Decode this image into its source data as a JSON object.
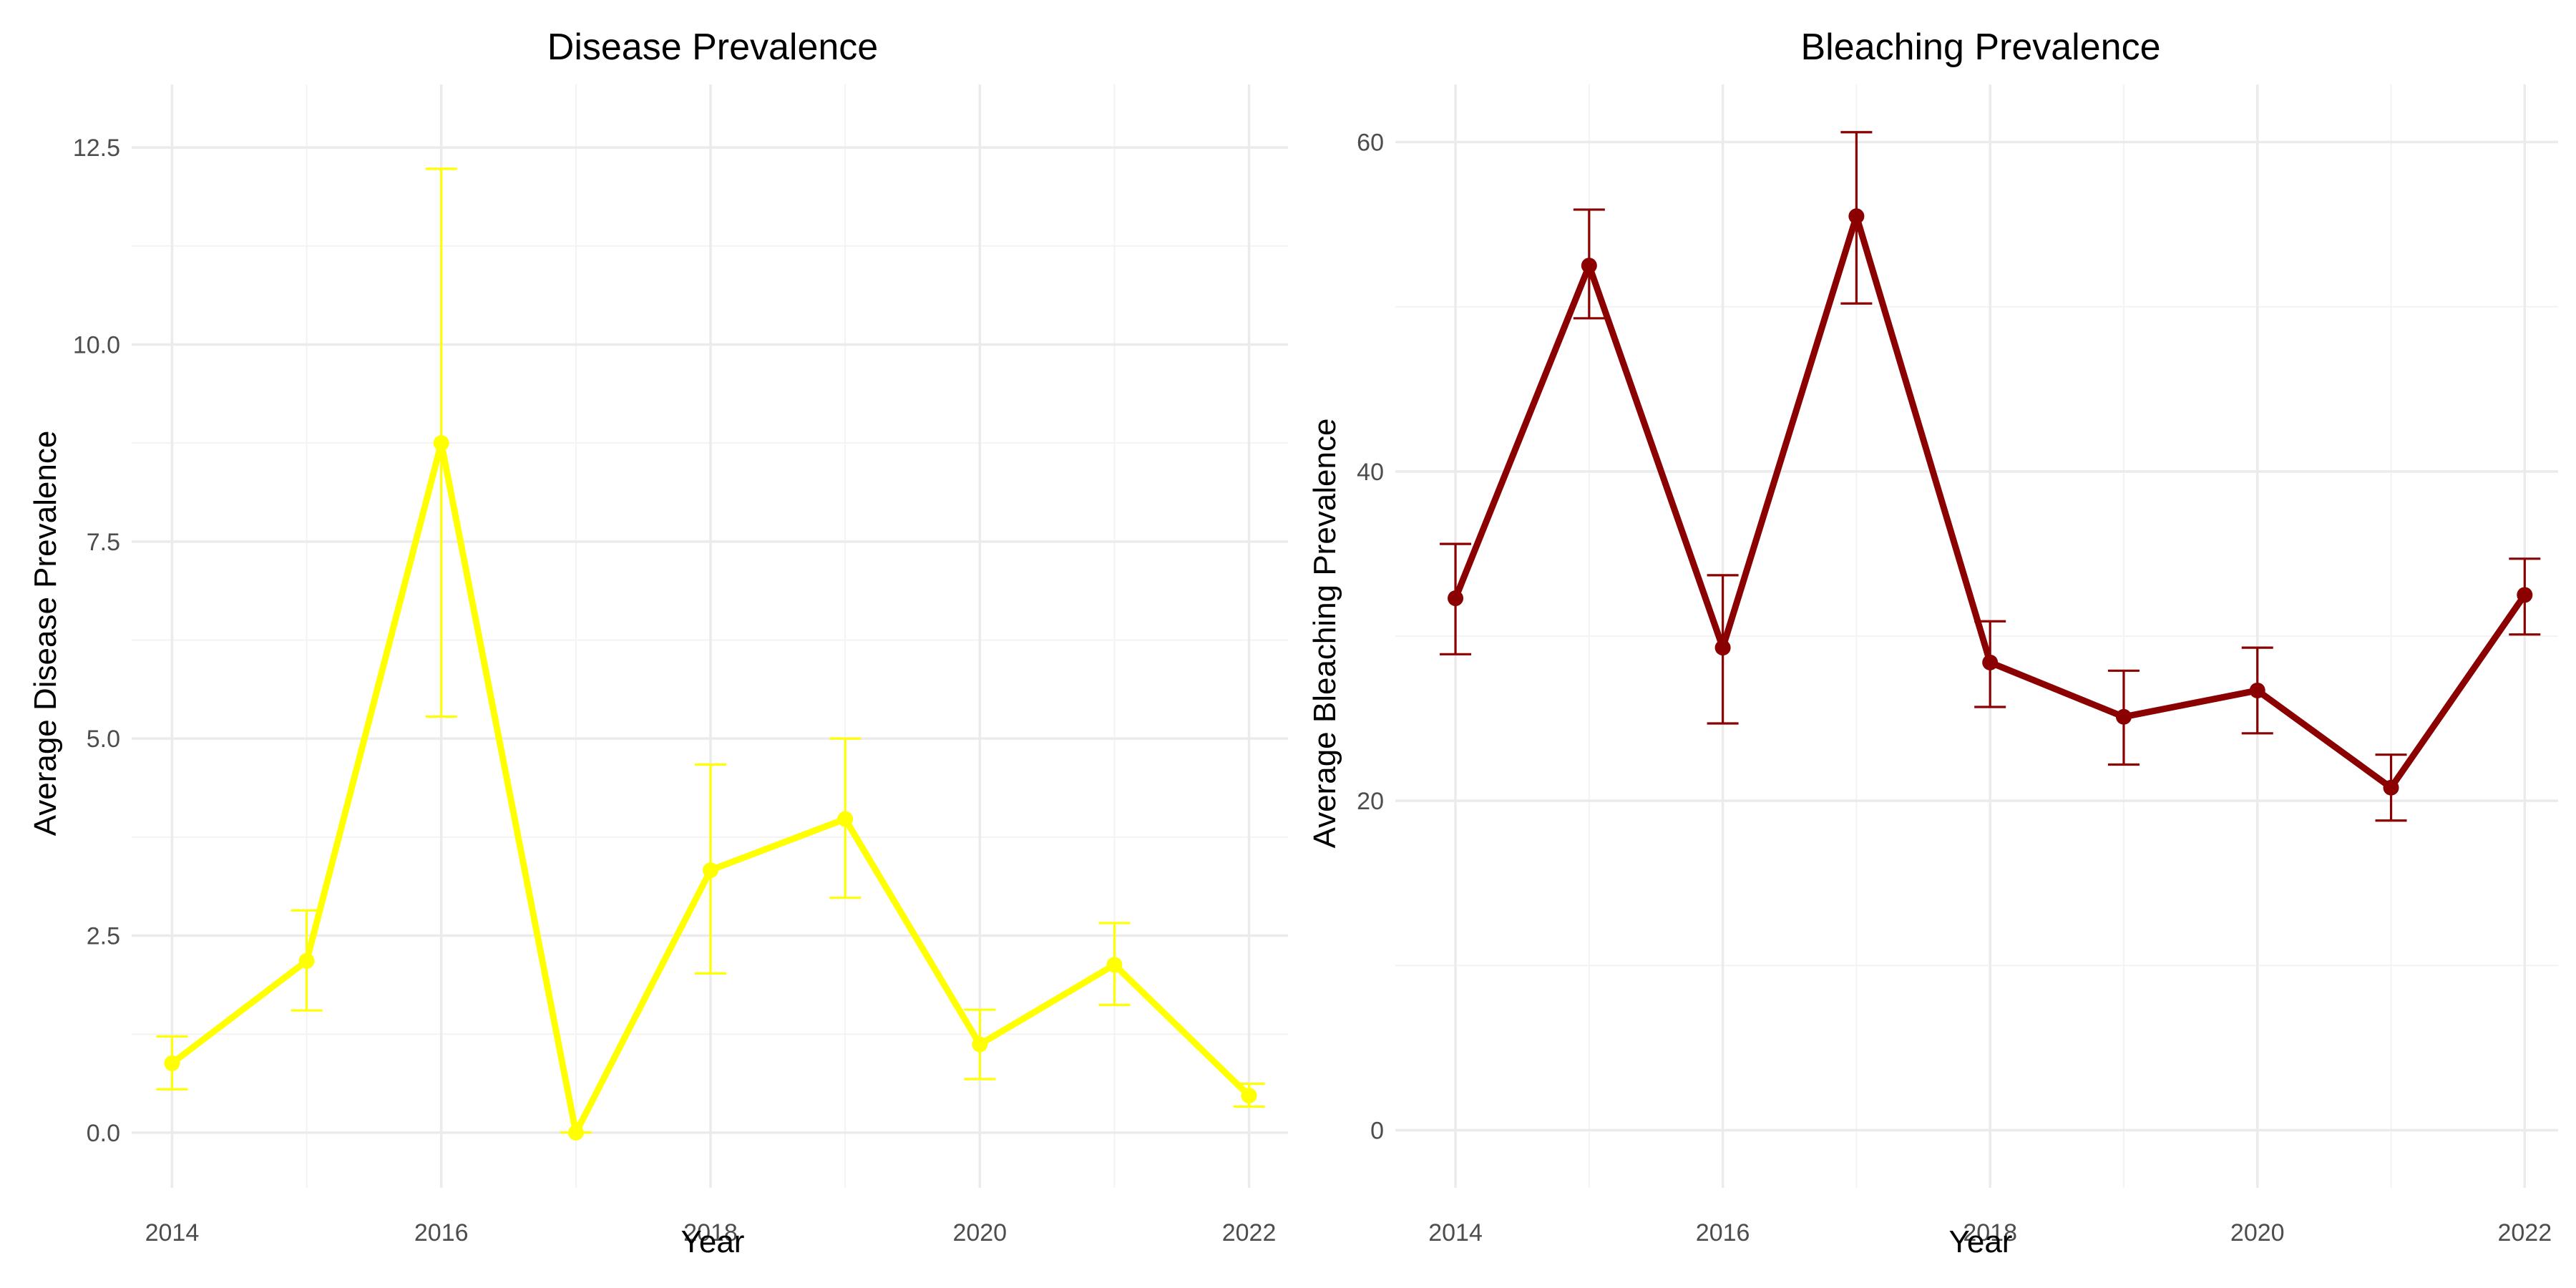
{
  "chart_data": [
    {
      "type": "line",
      "title": "Disease Prevalence",
      "xlabel": "Year",
      "ylabel": "Average Disease Prevalence",
      "color": "#ffff00",
      "xlim": [
        2013.7,
        2022.3
      ],
      "ylim": [
        -0.7,
        13.3
      ],
      "x_ticks": [
        2014,
        2016,
        2018,
        2020,
        2022
      ],
      "x_tick_labels": [
        "2014",
        "2016",
        "2018",
        "2020",
        "2022"
      ],
      "y_ticks": [
        0,
        2.5,
        5,
        7.5,
        10,
        12.5
      ],
      "y_tick_labels": [
        "0.0",
        "2.5",
        "5.0",
        "7.5",
        "10.0",
        "12.5"
      ],
      "grid": true,
      "legend": "none",
      "series": [
        {
          "x": [
            2014,
            2015,
            2016,
            2017,
            2018,
            2019,
            2020,
            2021,
            2022
          ],
          "y": [
            0.88,
            2.18,
            8.75,
            0.0,
            3.33,
            3.98,
            1.12,
            2.13,
            0.47
          ],
          "error_low": [
            0.55,
            1.55,
            5.28,
            0.0,
            2.02,
            2.98,
            0.68,
            1.62,
            0.33
          ],
          "error_high": [
            1.22,
            2.82,
            12.23,
            0.0,
            4.67,
            5.0,
            1.56,
            2.66,
            0.62
          ]
        }
      ]
    },
    {
      "type": "line",
      "title": "Bleaching Prevalence",
      "xlabel": "Year",
      "ylabel": "Average Bleaching Prevalence",
      "color": "#8b0000",
      "xlim": [
        2013.55,
        2022.25
      ],
      "ylim": [
        -3.5,
        63.5
      ],
      "x_ticks": [
        2014,
        2016,
        2018,
        2020,
        2022
      ],
      "x_tick_labels": [
        "2014",
        "2016",
        "2018",
        "2020",
        "2022"
      ],
      "y_ticks": [
        0,
        20,
        40,
        60
      ],
      "y_tick_labels": [
        "0",
        "20",
        "40",
        "60"
      ],
      "grid": true,
      "legend": "none",
      "series": [
        {
          "x": [
            2014,
            2015,
            2016,
            2017,
            2018,
            2019,
            2020,
            2021,
            2022
          ],
          "y": [
            32.3,
            52.5,
            29.3,
            55.5,
            28.4,
            25.1,
            26.7,
            20.8,
            32.5
          ],
          "error_low": [
            28.9,
            49.3,
            24.7,
            50.2,
            25.7,
            22.2,
            24.1,
            18.8,
            30.1
          ],
          "error_high": [
            35.6,
            55.9,
            33.7,
            60.6,
            30.9,
            27.9,
            29.3,
            22.8,
            34.7
          ]
        }
      ]
    }
  ]
}
